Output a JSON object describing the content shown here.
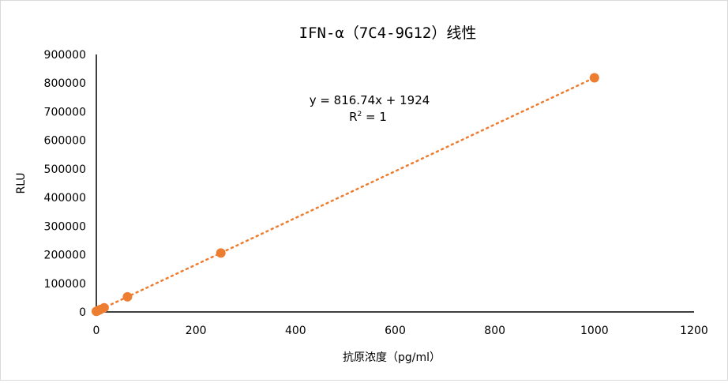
{
  "chart_data": {
    "type": "scatter",
    "title": "IFN-α（7C4-9G12）线性",
    "xlabel": "抗原浓度（pg/ml）",
    "ylabel": "RLU",
    "xlim": [
      0,
      1200
    ],
    "ylim": [
      0,
      900000
    ],
    "xticks": [
      0,
      200,
      400,
      600,
      800,
      1000,
      1200
    ],
    "yticks": [
      0,
      100000,
      200000,
      300000,
      400000,
      500000,
      600000,
      700000,
      800000,
      900000
    ],
    "grid": false,
    "series": [
      {
        "name": "RLU",
        "color": "#ed7d31",
        "x": [
          0,
          3.9,
          7.8,
          15.6,
          62.5,
          250,
          1000
        ],
        "y": [
          1924,
          5109,
          8295,
          14665,
          52970,
          206109,
          818664
        ]
      }
    ],
    "trendline": {
      "type": "linear",
      "slope": 816.74,
      "intercept": 1924,
      "style": "dotted",
      "equation": "y = 816.74x + 1924",
      "r2_label": "R",
      "r2_sup": "2",
      "r2_value": " = 1"
    }
  }
}
